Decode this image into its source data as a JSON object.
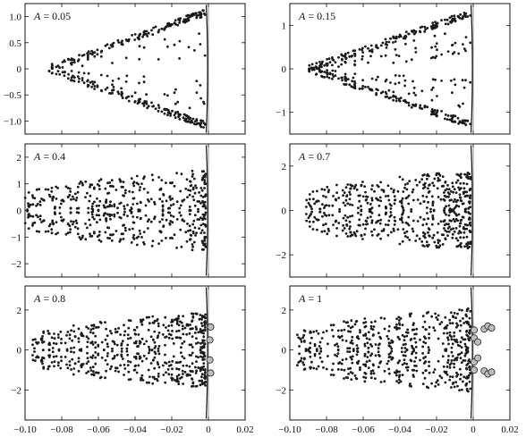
{
  "chart_data": [
    {
      "type": "scatter",
      "panel_label": "A = 0.05",
      "label_italic": "A",
      "label_rest": " = 0.05",
      "xlim": [
        -0.1,
        0.02
      ],
      "ylim": [
        -1.25,
        1.25
      ],
      "yticks": [
        -1.0,
        -0.5,
        0,
        0.5,
        1.0
      ],
      "ytick_labels": [
        "−1.0",
        "−0.5",
        "0",
        "0.5",
        "1.0"
      ],
      "xticks": [
        -0.1,
        -0.08,
        -0.06,
        -0.04,
        -0.02,
        0,
        0.02
      ],
      "xtick_labels": [],
      "pattern": {
        "kind": "fan",
        "x_min": -0.088,
        "spread": 1.1,
        "fill": 0.18,
        "density": 1.0
      },
      "open_points": []
    },
    {
      "type": "scatter",
      "panel_label": "A = 0.15",
      "label_italic": "A",
      "label_rest": " = 0.15",
      "xlim": [
        -0.1,
        0.02
      ],
      "ylim": [
        -1.5,
        1.5
      ],
      "yticks": [
        -1,
        0,
        1
      ],
      "ytick_labels": [
        "−1",
        "0",
        "1"
      ],
      "xticks": [
        -0.1,
        -0.08,
        -0.06,
        -0.04,
        -0.02,
        0,
        0.02
      ],
      "xtick_labels": [],
      "pattern": {
        "kind": "fan",
        "x_min": -0.09,
        "spread": 1.3,
        "fill": 0.45,
        "density": 1.0
      },
      "open_points": []
    },
    {
      "type": "scatter",
      "panel_label": "A = 0.4",
      "label_italic": "A",
      "label_rest": " = 0.4",
      "xlim": [
        -0.1,
        0.02
      ],
      "ylim": [
        -2.5,
        2.5
      ],
      "yticks": [
        -2,
        -1,
        0,
        1,
        2
      ],
      "ytick_labels": [
        "−2",
        "−1",
        "0",
        "1",
        "2"
      ],
      "xticks": [
        -0.1,
        -0.08,
        -0.06,
        -0.04,
        -0.02,
        0,
        0.02
      ],
      "xtick_labels": [],
      "pattern": {
        "kind": "cloud",
        "x_min": -0.1,
        "spread": 1.7,
        "fill": 0.9,
        "density": 1.0
      },
      "open_points": []
    },
    {
      "type": "scatter",
      "panel_label": "A = 0.7",
      "label_italic": "A",
      "label_rest": " = 0.7",
      "xlim": [
        -0.1,
        0.02
      ],
      "ylim": [
        -3,
        3
      ],
      "yticks": [
        -2,
        0,
        2
      ],
      "ytick_labels": [
        "−2",
        "0",
        "2"
      ],
      "xticks": [
        -0.1,
        -0.08,
        -0.06,
        -0.04,
        -0.02,
        0,
        0.02
      ],
      "xtick_labels": [],
      "pattern": {
        "kind": "cloud",
        "x_min": -0.093,
        "spread": 2.0,
        "fill": 0.9,
        "density": 1.1
      },
      "open_points": []
    },
    {
      "type": "scatter",
      "panel_label": "A = 0.8",
      "label_italic": "A",
      "label_rest": " = 0.8",
      "xlim": [
        -0.1,
        0.02
      ],
      "ylim": [
        -3.5,
        3.2
      ],
      "yticks": [
        -2,
        0,
        2
      ],
      "ytick_labels": [
        "−2",
        "0",
        "2"
      ],
      "xticks": [
        -0.1,
        -0.08,
        -0.06,
        -0.04,
        -0.02,
        0,
        0.02
      ],
      "xtick_labels": [
        "−0.10",
        "−0.08",
        "−0.06",
        "−0.04",
        "−0.02",
        "0",
        "0.02"
      ],
      "pattern": {
        "kind": "cloud",
        "x_min": -0.096,
        "spread": 2.1,
        "fill": 0.9,
        "density": 1.1
      },
      "open_points": [
        [
          0.0012,
          1.15
        ],
        [
          0.0012,
          -1.15
        ],
        [
          0.0008,
          0.5
        ],
        [
          0.0008,
          -0.5
        ]
      ]
    },
    {
      "type": "scatter",
      "panel_label": "A = 1",
      "label_italic": "A",
      "label_rest": " = 1",
      "xlim": [
        -0.1,
        0.02
      ],
      "ylim": [
        -3.5,
        3.2
      ],
      "yticks": [
        -2,
        0,
        2
      ],
      "ytick_labels": [
        "−2",
        "0",
        "2"
      ],
      "xticks": [
        -0.1,
        -0.08,
        -0.06,
        -0.04,
        -0.02,
        0,
        0.02
      ],
      "xtick_labels": [
        "−0.10",
        "−0.08",
        "−0.06",
        "−0.04",
        "−0.02",
        "0",
        "0.02"
      ],
      "pattern": {
        "kind": "cloud",
        "x_min": -0.096,
        "spread": 2.2,
        "fill": 0.95,
        "density": 1.1
      },
      "open_points": [
        [
          0.0005,
          1.0
        ],
        [
          0.0005,
          -1.0
        ],
        [
          0.0005,
          0.6
        ],
        [
          0.0005,
          -0.6
        ],
        [
          0.0025,
          0.4
        ],
        [
          0.0025,
          -0.4
        ],
        [
          0.006,
          1.05
        ],
        [
          0.008,
          1.2
        ],
        [
          0.01,
          1.1
        ],
        [
          0.006,
          -1.05
        ],
        [
          0.008,
          -1.2
        ],
        [
          0.01,
          -1.1
        ]
      ]
    }
  ]
}
